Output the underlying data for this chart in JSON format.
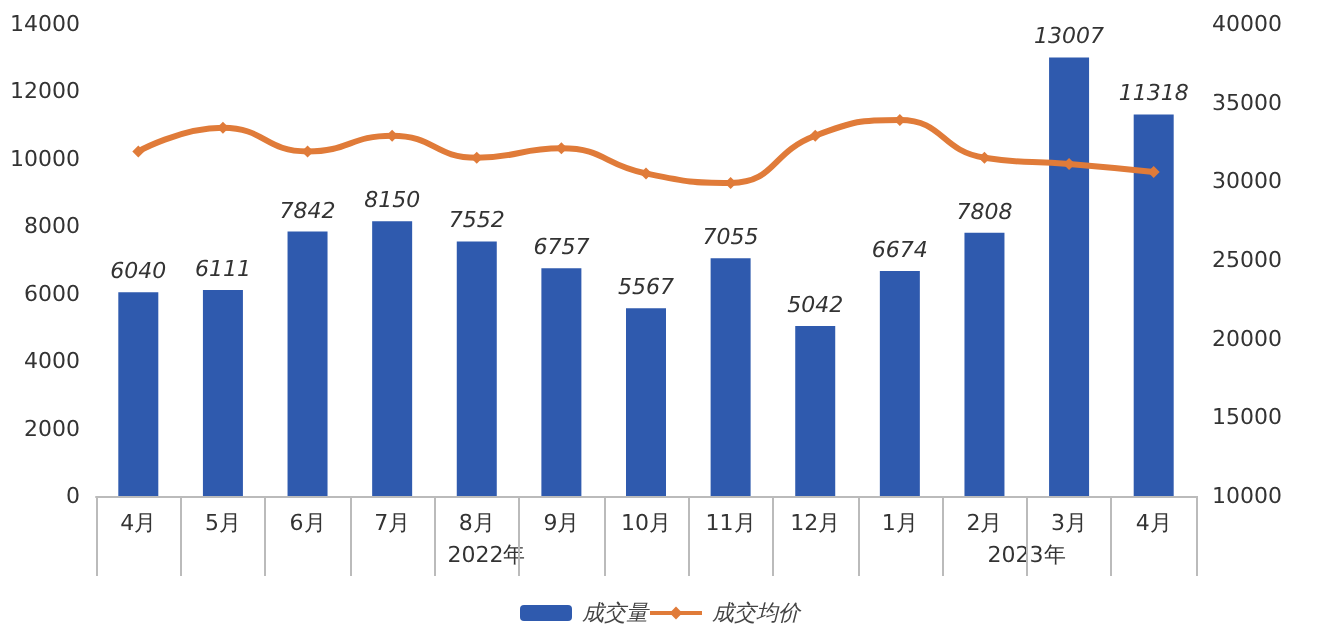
{
  "chart_data": {
    "type": "bar",
    "categories": [
      "4月",
      "5月",
      "6月",
      "7月",
      "8月",
      "9月",
      "10月",
      "11月",
      "12月",
      "1月",
      "2月",
      "3月",
      "4月"
    ],
    "series": [
      {
        "name": "成交量",
        "color": "#2f5aae",
        "values": [
          6040,
          6111,
          7842,
          8150,
          7552,
          6757,
          5567,
          7055,
          5042,
          6674,
          7808,
          13007,
          11318
        ],
        "value_labels": [
          "6040",
          "6111",
          "7842",
          "8150",
          "7552",
          "6757",
          "5567",
          "7055",
          "5042",
          "6674",
          "7808",
          "13007",
          "11318"
        ]
      },
      {
        "name": "成交均价",
        "type": "line",
        "axis": "y2",
        "color": "#e07b39",
        "marker": "diamond",
        "values": [
          31900,
          33400,
          31900,
          32900,
          31500,
          32100,
          30500,
          29900,
          32900,
          33900,
          31500,
          31100,
          30600
        ]
      }
    ],
    "ylim": [
      0,
      14000
    ],
    "yticks": [
      0,
      2000,
      4000,
      6000,
      8000,
      10000,
      12000,
      14000
    ],
    "y2lim": [
      10000,
      40000
    ],
    "y2ticks": [
      10000,
      15000,
      20000,
      25000,
      30000,
      35000,
      40000
    ],
    "grid": false,
    "legend": "bottom",
    "annotations": [
      "2022年",
      "2023年"
    ]
  }
}
